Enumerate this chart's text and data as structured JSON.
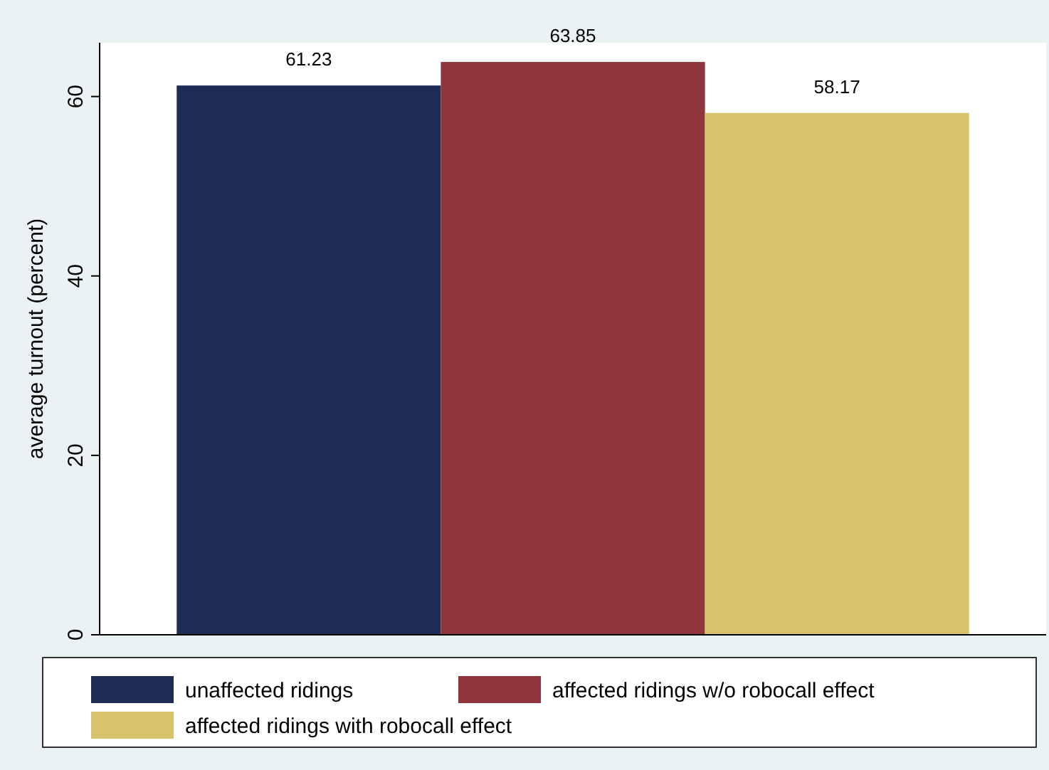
{
  "chart_data": {
    "type": "bar",
    "ylabel": "average turnout (percent)",
    "categories": [
      null
    ],
    "series": [
      {
        "name": "unaffected ridings",
        "color": "#1f2d54",
        "values": [
          61.23
        ]
      },
      {
        "name": "affected ridings w/o robocall effect",
        "color": "#90353b",
        "values": [
          63.85
        ]
      },
      {
        "name": "affected ridings with robocall effect",
        "color": "#d8c26a",
        "values": [
          58.17
        ]
      }
    ],
    "ylim": [
      0,
      66
    ],
    "yticks": [
      0,
      20,
      40,
      60
    ],
    "data_labels": true,
    "legend": "bottom"
  }
}
